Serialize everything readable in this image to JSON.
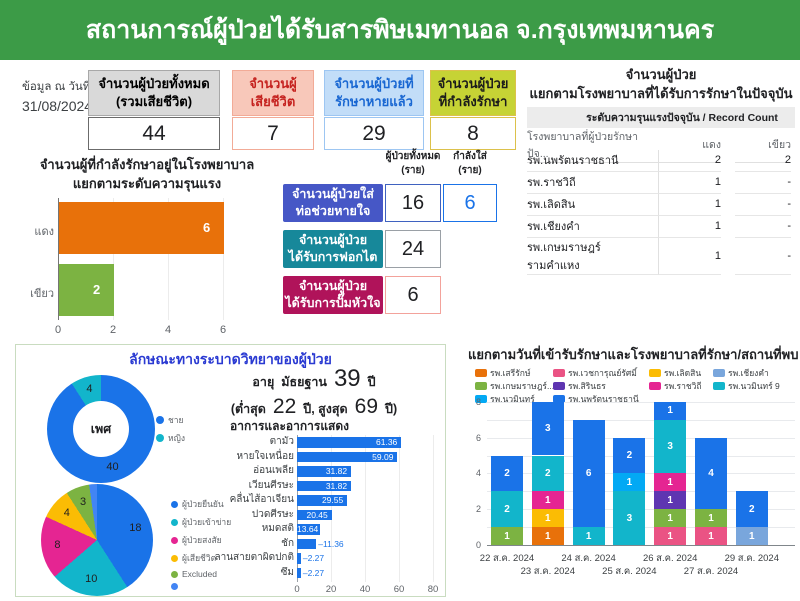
{
  "title": "สถานการณ์ผู้ป่วยได้รับสารพิษเมทานอล จ.กรุงเทพมหานคร",
  "header_bg": "#3c9b47",
  "as_of": {
    "label": "ข้อมูล ณ วันที่",
    "date": "31/08/2024"
  },
  "stat_cards": [
    {
      "line1": "จำนวนผู้ป่วยทั้งหมด",
      "line2": "(รวมเสียชีวิต)",
      "value": "44",
      "bg": "#d9d9d9",
      "border": "#a8a8a8",
      "text": "#000000",
      "value_border": "#6b6b6b"
    },
    {
      "line1": "จำนวนผู้",
      "line2": "เสียชีวิต",
      "value": "7",
      "bg": "#f8c8ba",
      "border": "#f2ab97",
      "text": "#c5221f",
      "value_border": "#f2ab97"
    },
    {
      "line1": "จำนวนผู้ป่วยที่",
      "line2": "รักษาหายแล้ว",
      "value": "29",
      "bg": "#c2ddf8",
      "border": "#9dc6f2",
      "text": "#1967d2",
      "value_border": "#9dc6f2"
    },
    {
      "line1": "จำนวนผู้ป่วย",
      "line2": "ที่กำลังรักษา",
      "value": "8",
      "bg": "#c6d335",
      "border": "#dcc14b",
      "text": "#1b1b1b",
      "value_border": "#dcc14b"
    }
  ],
  "hospital_table": {
    "title_line1": "จำนวนผู้ป่วย",
    "title_line2": "แยกตามโรงพยาบาลที่ได้รับการรักษาในปัจจุบัน",
    "band_header": "ระดับความรุนแรงปัจจุบัน / Record Count",
    "col_hospital": "โรงพยาบาลที่ผู้ป่วยรักษาปัจ...",
    "col_red": "แดง",
    "col_green": "เขียว",
    "rows": [
      {
        "name": "รพ.นพรัตนราชธานี",
        "red": "2",
        "green": "2"
      },
      {
        "name": "รพ.ราชวิถี",
        "red": "1",
        "green": "-"
      },
      {
        "name": "รพ.เลิดสิน",
        "red": "1",
        "green": "-"
      },
      {
        "name": "รพ.เชียงคำ",
        "red": "1",
        "green": "-"
      },
      {
        "name": "รพ.เกษมราษฎร์ รามคำแหง",
        "red": "1",
        "green": "-"
      }
    ]
  },
  "treatment": {
    "col_total_line1": "ผู้ป่วยทั้งหมด",
    "col_total_line2": "(ราย)",
    "col_current_line1": "กำลังใส่",
    "col_current_line2": "(ราย)",
    "rows": [
      {
        "label_line1": "จำนวนผู้ป่วยใส่",
        "label_line2": "ท่อช่วยหายใจ",
        "bg": "#4657c6",
        "total": "16",
        "current": "6"
      },
      {
        "label_line1": "จำนวนผู้ป่วย",
        "label_line2": "ได้รับการฟอกไต",
        "bg": "#17889a",
        "total": "24"
      },
      {
        "label_line1": "จำนวนผู้ป่วย",
        "label_line2": "ได้รับการปั๊มหัวใจ",
        "bg": "#b0135a",
        "total": "6"
      }
    ]
  },
  "epi": {
    "title": "ลักษณะทางระบาดวิทยาของผู้ป่วย",
    "age": {
      "label": "อายุ",
      "median_label": "มัธยฐาน",
      "median": "39",
      "unit": "ปี",
      "min_label": "(ต่ำสุด",
      "min": "22",
      "mid_label": "ปี, สูงสุด",
      "max": "69",
      "max_label": "ปี)"
    }
  },
  "chart_data": [
    {
      "id": "severity",
      "type": "bar",
      "orientation": "horizontal",
      "title": "จำนวนผู้ที่กำลังรักษาอยู่ในโรงพยาบาล แยกตามระดับความรุนแรง",
      "title_lines": [
        "จำนวนผู้ที่กำลังรักษาอยู่ในโรงพยาบาล",
        "แยกตามระดับความรุนแรง"
      ],
      "categories": [
        "แดง",
        "เขียว"
      ],
      "values": [
        6,
        2
      ],
      "colors": [
        "#e8710a",
        "#7cb342"
      ],
      "xticks": [
        0,
        2,
        4,
        6
      ],
      "xlim": [
        0,
        6.6
      ],
      "grid": true
    },
    {
      "id": "gender",
      "type": "pie",
      "donut": true,
      "center_label": "เพศ",
      "labels": [
        "ชาย",
        "หญิง"
      ],
      "values": [
        40,
        4
      ],
      "colors": [
        "#1a73e8",
        "#12b5cb"
      ],
      "legend_position": "right"
    },
    {
      "id": "classification",
      "type": "pie",
      "labels": [
        "ผู้ป่วยยืนยัน",
        "ผู้ป่วยเข้าข่าย",
        "ผู้ป่วยสงสัย",
        "ผู้เสียชีวิต",
        "Excluded",
        ""
      ],
      "values": [
        18,
        10,
        8,
        4,
        3,
        1
      ],
      "colors": [
        "#1a73e8",
        "#12b5cb",
        "#e52592",
        "#fbbc04",
        "#7cb342",
        "#4285f4"
      ],
      "legend_position": "right"
    },
    {
      "id": "symptoms",
      "type": "bar",
      "orientation": "horizontal",
      "title": "อาการและอาการแสดง",
      "categories": [
        "ตามัว",
        "หายใจเหนื่อย",
        "อ่อนเพลีย",
        "เวียนศีรษะ",
        "คลื่นไส้อาเจียน",
        "ปวดศีรษะ",
        "หมดสติ",
        "ชัก",
        "ลานสายตาผิดปกติ",
        "ซึม"
      ],
      "values": [
        61.36,
        59.09,
        31.82,
        31.82,
        29.55,
        20.45,
        13.64,
        11.36,
        2.27,
        2.27
      ],
      "color": "#1a73e8",
      "xticks": [
        0,
        20,
        40,
        60,
        80
      ],
      "xlim": [
        0,
        80
      ],
      "grid": true
    },
    {
      "id": "admissions",
      "type": "bar",
      "stacked": true,
      "title": "แยกตามวันที่เข้ารับรักษาและโรงพยาบาลที่รักษา/สถานที่พบ",
      "categories": [
        "22 ส.ค. 2024",
        "23 ส.ค. 2024",
        "24 ส.ค. 2024",
        "25 ส.ค. 2024",
        "26 ส.ค. 2024",
        "27 ส.ค. 2024",
        "29 ส.ค. 2024"
      ],
      "series": [
        {
          "name": "รพ.เสรีรักษ์",
          "color": "#e8710a",
          "values": [
            0,
            1,
            0,
            0,
            0,
            0,
            0
          ]
        },
        {
          "name": "รพ.เวชการุณย์รัศมิ์",
          "color": "#ea5384",
          "values": [
            0,
            0,
            0,
            0,
            1,
            1,
            0
          ]
        },
        {
          "name": "รพ.เลิดสิน",
          "color": "#fbbc04",
          "values": [
            0,
            1,
            0,
            0,
            0,
            0,
            0
          ]
        },
        {
          "name": "รพ.เชียงคำ",
          "color": "#79a6dc",
          "values": [
            0,
            0,
            0,
            0,
            0,
            0,
            1
          ]
        },
        {
          "name": "รพ.เกษมราษฎร์...",
          "color": "#7cb342",
          "values": [
            1,
            0,
            0,
            0,
            1,
            1,
            0
          ]
        },
        {
          "name": "รพ.สิรินธร",
          "color": "#5e35b1",
          "values": [
            0,
            0,
            0,
            0,
            1,
            0,
            0
          ]
        },
        {
          "name": "รพ.ราชวิถี",
          "color": "#e52592",
          "values": [
            0,
            1,
            0,
            0,
            1,
            0,
            0
          ]
        },
        {
          "name": "รพ.นวมินทร์ 9",
          "color": "#12b5cb",
          "values": [
            2,
            2,
            1,
            3,
            3,
            0,
            0
          ]
        },
        {
          "name": "รพ.นวมินทร์",
          "color": "#03a9f4",
          "values": [
            0,
            0,
            0,
            1,
            0,
            0,
            0
          ]
        },
        {
          "name": "รพ.นพรัตนราชธานี",
          "color": "#1a73e8",
          "values": [
            2,
            3,
            6,
            2,
            1,
            4,
            2
          ]
        }
      ],
      "yticks": [
        0,
        2,
        4,
        6,
        8
      ],
      "ylim": [
        0,
        8
      ],
      "grid": true,
      "legend_position": "top"
    }
  ]
}
